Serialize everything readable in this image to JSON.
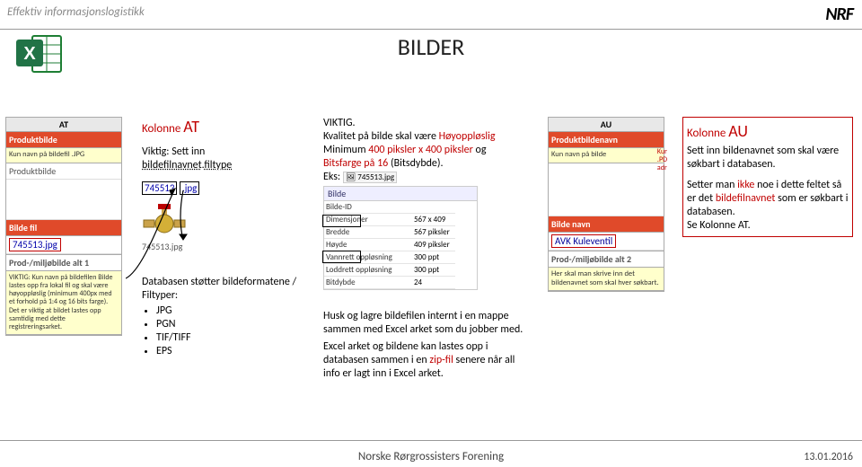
{
  "page": {
    "tagline": "Effektiv informasjonslogistikk",
    "logo": "NRF",
    "title": "BILDER",
    "footer_center": "Norske Rørgrossisters Forening",
    "footer_date": "13.01.2016"
  },
  "col1": {
    "hdr": "AT",
    "label": "Produktbilde",
    "note": "Kun navn på bildefil .JPG",
    "row1": "Produktbilde",
    "section2": "Bilde fil",
    "file": "745513.jpg",
    "alt_hdr": "Prod-/miljøbilde alt 1",
    "alt_note": "VIKTIG: Kun navn på bildefilen Bilde lastes opp fra lokal fil og skal være høyoppløslig (minimum 400px med et forhold på 1:4 og 16 bits farge). Det er viktig at bildet lastes opp samtidig med dette registreringsarket."
  },
  "col2": {
    "kolonne": "Kolonne",
    "kolonne_big": "AT",
    "l2a": "Viktig: Sett inn",
    "l2b_a": "bildefilnavnet",
    "l2b_b": "filtype",
    "box_a": "745513",
    "box_b": ".jpg",
    "caption": "745513.jpg",
    "db_l1": "Databasen støtter bildeformatene / Filtyper:",
    "fmt1": "JPG",
    "fmt2": "PGN",
    "fmt3": "TIF/TIFF",
    "fmt4": "EPS"
  },
  "col3": {
    "l1": "VIKTIG.",
    "l2a": "Kvalitet på bilde skal være ",
    "l2b": "Høyoppløslig",
    "l3a": "Minimum ",
    "l3b": "400 piksler x 400 piksler ",
    "l3c": "og",
    "l4a": "Bitsfarge på 16 ",
    "l4b": "(Bitsdybde).",
    "l5": "Eks:",
    "eks_file": "745513.jpg",
    "meta_title": "Bilde",
    "meta": [
      [
        "Bilde-ID",
        ""
      ],
      [
        "Dimensjoner",
        "567 x 409"
      ],
      [
        "Bredde",
        "567 piksler"
      ],
      [
        "Høyde",
        "409 piksler"
      ],
      [
        "Vannrett oppløsning",
        "300 ppt"
      ],
      [
        "Loddrett oppløsning",
        "300 ppt"
      ],
      [
        "Bitdybde",
        "24"
      ]
    ],
    "p1": "Husk og lagre bildefilen internt i en mappe sammen med Excel arket som du jobber med.",
    "p2a": "Excel arket og bildene kan lastes opp i databasen sammen i en ",
    "p2b": "zip-fil",
    "p2c": " senere når all info er lagt inn i Excel arket."
  },
  "col4": {
    "hdr": "AU",
    "label": "Produktbildenavn",
    "note": "Kun navn på bilde",
    "hidden1": "Kur",
    "hidden2": ".PD",
    "hidden3": "adr",
    "section2": "Bilde navn",
    "val": "AVK Kuleventil",
    "alt_hdr": "Prod-/miljøbilde alt 2",
    "alt_note": "Her skal man skrive inn det bildenavnet som skal hver søkbart."
  },
  "col5": {
    "kolonne": "Kolonne",
    "kolonne_big": "AU",
    "p1": "Sett inn bildenavnet som skal være søkbart i databasen.",
    "p2a": "Setter man ",
    "p2b": "ikke",
    "p2c": " noe i dette feltet så er det ",
    "p2d": "bildefilnavnet",
    "p2e": " som er søkbart i databasen.",
    "p3": "Se Kolonne AT."
  }
}
